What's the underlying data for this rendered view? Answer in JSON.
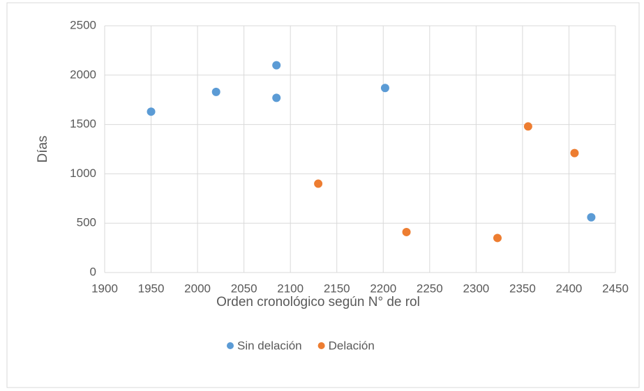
{
  "chart_data": {
    "type": "scatter",
    "x_label": "Orden cronológico según N° de rol",
    "y_label": "Días",
    "xlim": [
      1900,
      2450
    ],
    "xticks": [
      1900,
      1950,
      2000,
      2050,
      2100,
      2150,
      2200,
      2250,
      2300,
      2350,
      2400,
      2450
    ],
    "ylim": [
      0,
      2500
    ],
    "yticks": [
      0,
      500,
      1000,
      1500,
      2000,
      2500
    ],
    "grid": true,
    "legend": "bottom",
    "series": [
      {
        "name": "Sin delación",
        "color": "#5b9bd5",
        "x": [
          1950,
          2020,
          2085,
          2085,
          2202,
          2424
        ],
        "values": [
          1630,
          1830,
          2100,
          1770,
          1870,
          560
        ]
      },
      {
        "name": "Delación",
        "color": "#ed7d31",
        "x": [
          2130,
          2225,
          2323,
          2356,
          2406
        ],
        "values": [
          900,
          410,
          350,
          1480,
          1210
        ]
      }
    ]
  }
}
